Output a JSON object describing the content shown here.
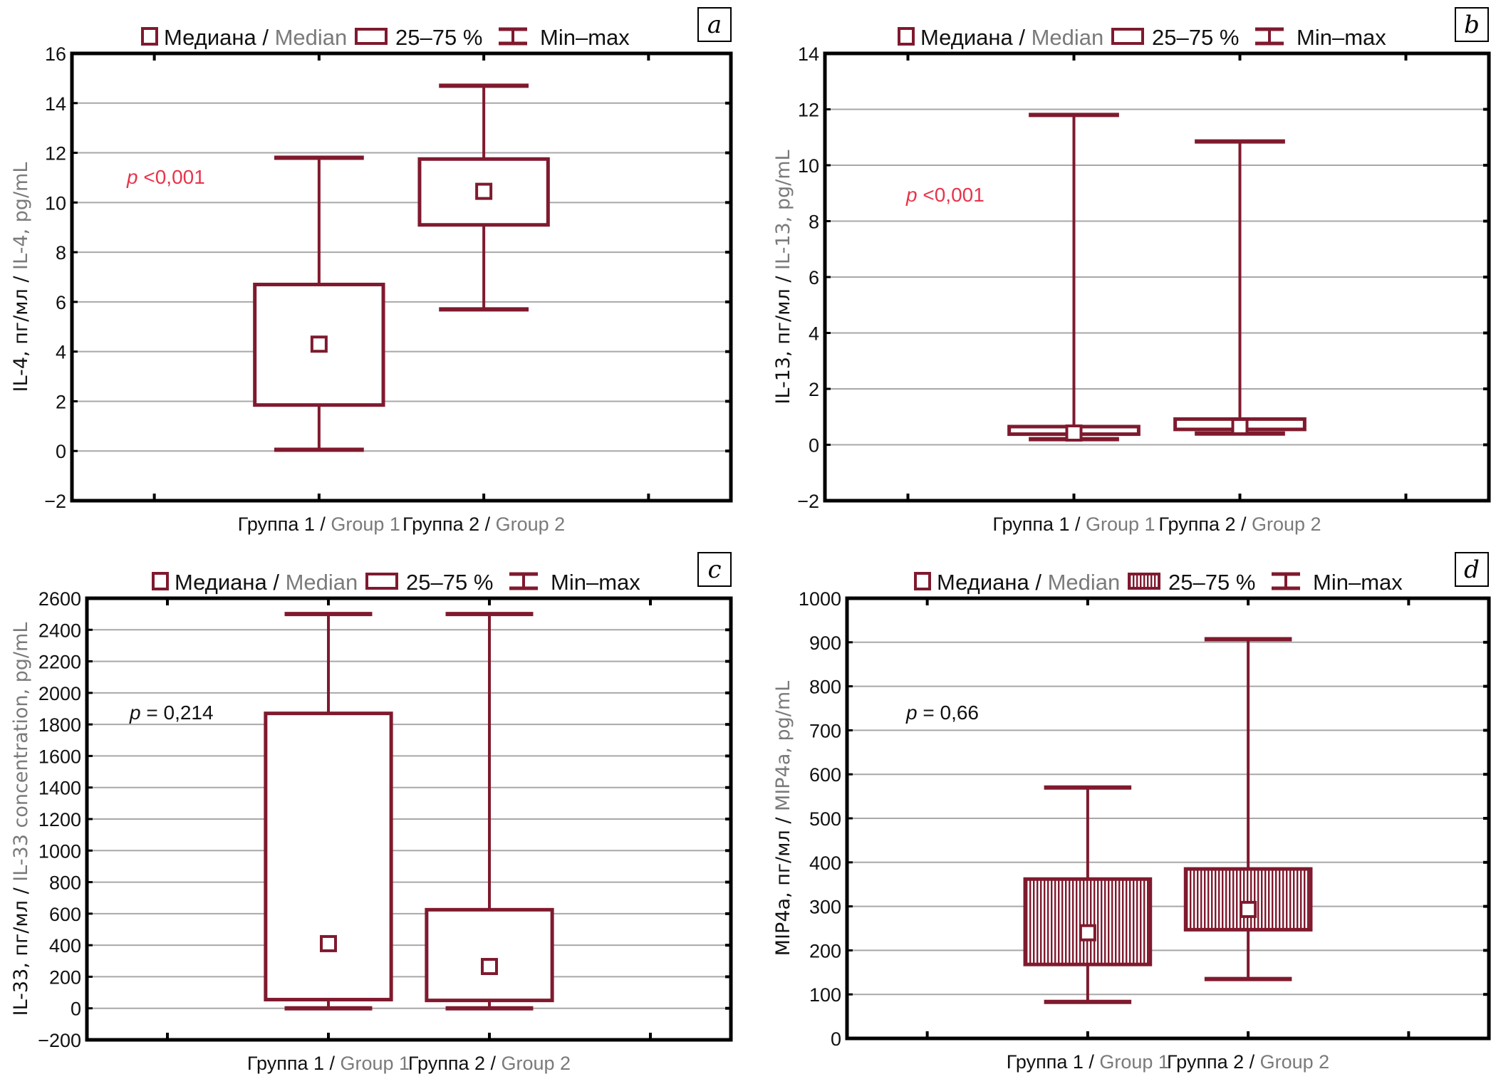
{
  "colors": {
    "box": "#7f1a2e",
    "grid": "#a8a8a8",
    "axis": "#000000",
    "p_significant": "#e8344a",
    "p_nonsignificant": "#111111",
    "english_text": "#7a7a7a"
  },
  "legend": {
    "median_ru": "Медиана",
    "median_sep": " / ",
    "median_en": "Median",
    "iqr": "25–75 %",
    "range": "Min–max"
  },
  "chart_data": [
    {
      "panel": "a",
      "type": "boxplot",
      "ylabel_ru": "IL-4, пг/мл",
      "ylabel_en": "IL-4, pg/mL",
      "ylim": [
        -2,
        16
      ],
      "yticks": [
        -2,
        0,
        2,
        4,
        6,
        8,
        10,
        12,
        14,
        16
      ],
      "grid": true,
      "filled": false,
      "p_value": "<0,001",
      "p_significant": true,
      "categories": [
        {
          "ru": "Группа 1",
          "en": "Group 1",
          "min": 0.05,
          "q1": 1.85,
          "median": 4.3,
          "q3": 6.7,
          "max": 11.8
        },
        {
          "ru": "Группа 2",
          "en": "Group 2",
          "min": 5.7,
          "q1": 9.1,
          "median": 10.45,
          "q3": 11.75,
          "max": 14.7
        }
      ]
    },
    {
      "panel": "b",
      "type": "boxplot",
      "ylabel_ru": "IL-13, пг/мл",
      "ylabel_en": "IL-13, pg/mL",
      "ylim": [
        -2,
        14
      ],
      "yticks": [
        -2,
        0,
        2,
        4,
        6,
        8,
        10,
        12,
        14
      ],
      "grid": true,
      "filled": false,
      "p_value": "<0,001",
      "p_significant": true,
      "categories": [
        {
          "ru": "Группа 1",
          "en": "Group 1",
          "min": 0.2,
          "q1": 0.38,
          "median": 0.42,
          "q3": 0.65,
          "max": 11.8
        },
        {
          "ru": "Группа 2",
          "en": "Group 2",
          "min": 0.4,
          "q1": 0.55,
          "median": 0.65,
          "q3": 0.92,
          "max": 10.85
        }
      ]
    },
    {
      "panel": "c",
      "type": "boxplot",
      "ylabel_ru": "IL-33, пг/мл",
      "ylabel_en": "IL-33 concentration, pg/mL",
      "ylim": [
        -200,
        2600
      ],
      "yticks": [
        -200,
        0,
        200,
        400,
        600,
        800,
        1000,
        1200,
        1400,
        1600,
        1800,
        2000,
        2200,
        2400,
        2600
      ],
      "grid": true,
      "filled": false,
      "p_value": "= 0,214",
      "p_significant": false,
      "categories": [
        {
          "ru": "Группа 1",
          "en": "Group 1",
          "min": 0,
          "q1": 55,
          "median": 410,
          "q3": 1870,
          "max": 2500
        },
        {
          "ru": "Группа 2",
          "en": "Group 2",
          "min": 0,
          "q1": 50,
          "median": 265,
          "q3": 625,
          "max": 2500
        }
      ]
    },
    {
      "panel": "d",
      "type": "boxplot",
      "ylabel_ru": "MIP4a, пг/мл",
      "ylabel_en": "MIP4a, pg/mL",
      "ylim": [
        0,
        1000
      ],
      "yticks": [
        0,
        100,
        200,
        300,
        400,
        500,
        600,
        700,
        800,
        900,
        1000
      ],
      "grid": true,
      "filled": true,
      "p_value": "= 0,66",
      "p_significant": false,
      "categories": [
        {
          "ru": "Группа 1",
          "en": "Group 1",
          "min": 83,
          "q1": 168,
          "median": 240,
          "q3": 362,
          "max": 570
        },
        {
          "ru": "Группа 2",
          "en": "Group 2",
          "min": 135,
          "q1": 247,
          "median": 293,
          "q3": 385,
          "max": 907
        }
      ]
    }
  ]
}
